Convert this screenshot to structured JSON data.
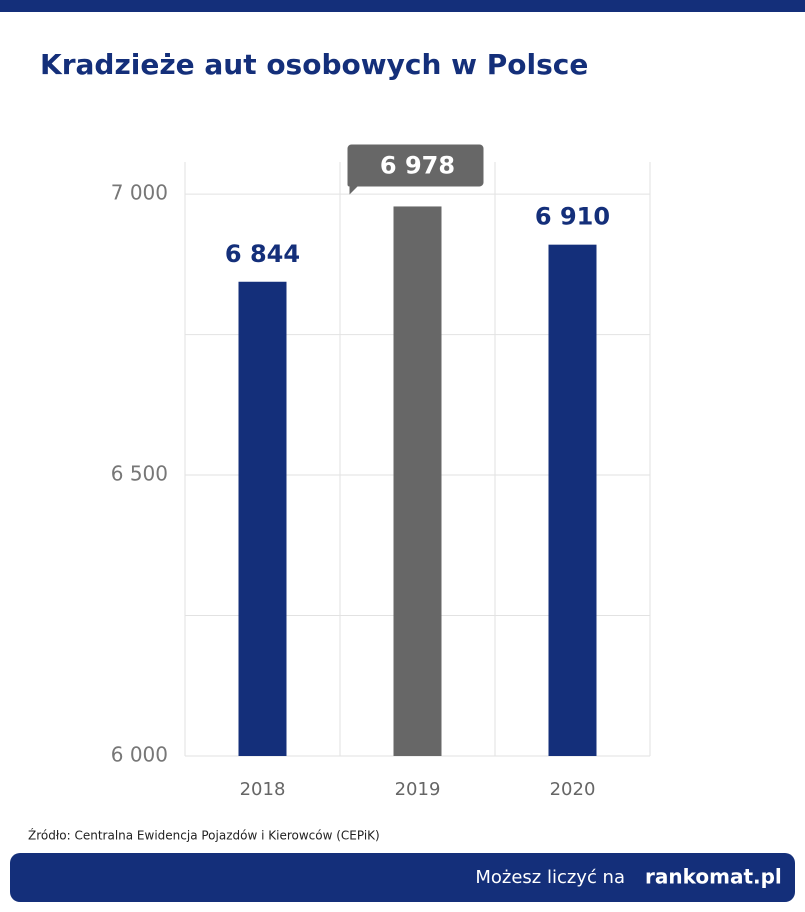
{
  "chart_data": {
    "type": "bar",
    "title": "Kradzieże aut osobowych w Polsce",
    "categories": [
      "2018",
      "2019",
      "2020"
    ],
    "values": [
      6844,
      6978,
      6910
    ],
    "value_labels": [
      "6 844",
      "6 978",
      "6 910"
    ],
    "colors": [
      "#142f7a",
      "#676767",
      "#142f7a"
    ],
    "highlight": 1,
    "ylim": [
      6000,
      7050
    ],
    "yticks": [
      {
        "value": 6000,
        "label": "6 000"
      },
      {
        "value": 6500,
        "label": "6 500"
      },
      {
        "value": 7000,
        "label": "7 000"
      }
    ],
    "minor_yticks": [
      6250,
      6750
    ],
    "grid": true,
    "source": "Źródło: Centralna Ewidencja Pojazdów i Kierowców (CEPiK)"
  },
  "footer": {
    "tagline": "Możesz liczyć na",
    "brand": "rankomat.pl"
  }
}
